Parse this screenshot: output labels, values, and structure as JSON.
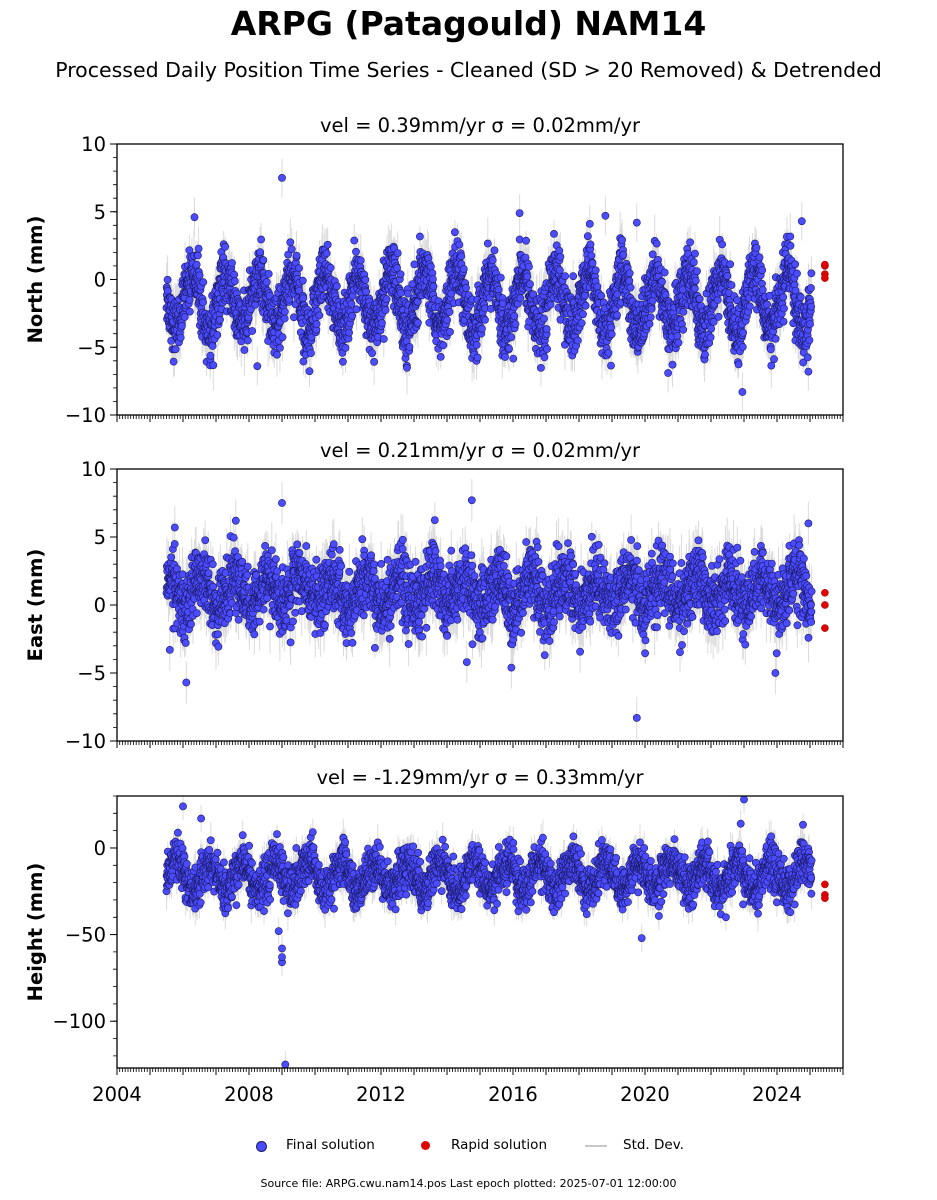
{
  "figure": {
    "title": "ARPG (Patagould) NAM14",
    "subtitle": "Processed Daily Position Time Series - Cleaned (SD > 20 Removed) & Detrended",
    "source_note": "Source file: ARPG.cwu.nam14.pos  Last epoch plotted: 2025-07-01 12:00:00"
  },
  "legend": {
    "final": "Final solution",
    "rapid": "Rapid solution",
    "stddev": "Std. Dev."
  },
  "colors": {
    "final_fill": "#4b4bff",
    "final_edge": "#1a1a66",
    "rapid": "#e00000",
    "stddev": "#bdbdbd"
  },
  "chart_data": [
    {
      "type": "scatter",
      "panel": "north",
      "title": "vel = 0.39mm/yr   σ = 0.02mm/yr",
      "ylabel": "North (mm)",
      "xlim": [
        2004.0,
        2026.0
      ],
      "ylim": [
        -10,
        10
      ],
      "yticks": [
        -10,
        -5,
        0,
        5,
        10
      ],
      "ytick_labels": [
        "−10",
        "−5",
        "0",
        "5",
        "10"
      ],
      "xticks": [
        2004,
        2008,
        2012,
        2016,
        2020,
        2024
      ],
      "xtick_labels": [
        "2004",
        "2008",
        "2012",
        "2016",
        "2020",
        "2024"
      ],
      "model": {
        "start": 2005.5,
        "end": 2025.05,
        "step": 0.0055,
        "offset": -1.6,
        "amp": 2.1,
        "phase": 0.05,
        "noise": 1.1
      },
      "outliers": [
        [
          2009.0,
          7.5
        ],
        [
          2006.35,
          4.6
        ],
        [
          2022.95,
          -8.3
        ],
        [
          2024.95,
          -6.8
        ],
        [
          2016.2,
          4.9
        ],
        [
          2018.8,
          4.7
        ],
        [
          2019.75,
          4.2
        ],
        [
          2024.75,
          4.3
        ],
        [
          2008.25,
          -6.4
        ],
        [
          2020.7,
          -6.9
        ]
      ],
      "rapid": [
        [
          2025.45,
          1.0
        ],
        [
          2025.45,
          0.4
        ],
        [
          2025.45,
          0.1
        ],
        [
          2025.45,
          1.1
        ]
      ]
    },
    {
      "type": "scatter",
      "panel": "east",
      "title": "vel = 0.21mm/yr   σ = 0.02mm/yr",
      "ylabel": "East (mm)",
      "xlim": [
        2004.0,
        2026.0
      ],
      "ylim": [
        -10,
        10
      ],
      "yticks": [
        -10,
        -5,
        0,
        5,
        10
      ],
      "ytick_labels": [
        "−10",
        "−5",
        "0",
        "5",
        "10"
      ],
      "xticks": [
        2004,
        2008,
        2012,
        2016,
        2020,
        2024
      ],
      "xtick_labels": [
        "2004",
        "2008",
        "2012",
        "2016",
        "2020",
        "2024"
      ],
      "model": {
        "start": 2005.5,
        "end": 2025.05,
        "step": 0.0055,
        "offset": 1.0,
        "amp": 1.1,
        "phase": 0.3,
        "noise": 1.2
      },
      "outliers": [
        [
          2009.0,
          7.5
        ],
        [
          2014.75,
          7.7
        ],
        [
          2005.75,
          5.7
        ],
        [
          2007.6,
          6.2
        ],
        [
          2006.1,
          -5.7
        ],
        [
          2019.75,
          -8.3
        ],
        [
          2023.95,
          -5.0
        ],
        [
          2005.6,
          -3.3
        ],
        [
          2024.95,
          6.0
        ],
        [
          2014.6,
          -4.2
        ],
        [
          2015.95,
          -4.6
        ]
      ],
      "rapid": [
        [
          2025.45,
          0.9
        ],
        [
          2025.45,
          0.0
        ],
        [
          2025.45,
          -1.7
        ]
      ]
    },
    {
      "type": "scatter",
      "panel": "height",
      "title": "vel = -1.29mm/yr   σ = 0.33mm/yr",
      "ylabel": "Height (mm)",
      "xlim": [
        2004.0,
        2026.0
      ],
      "ylim": [
        -127,
        30
      ],
      "yticks": [
        -100,
        -50,
        0
      ],
      "ytick_labels": [
        "−100",
        "−50",
        "0"
      ],
      "xticks": [
        2004,
        2008,
        2012,
        2016,
        2020,
        2024
      ],
      "xtick_labels": [
        "2004",
        "2008",
        "2012",
        "2016",
        "2020",
        "2024"
      ],
      "model": {
        "start": 2005.5,
        "end": 2025.05,
        "step": 0.0055,
        "offset": -16.0,
        "amp": 8.0,
        "phase": 0.55,
        "noise": 6.0
      },
      "outliers": [
        [
          2009.1,
          -125.0
        ],
        [
          2009.0,
          -66.0
        ],
        [
          2009.0,
          -63.0
        ],
        [
          2009.0,
          -58.0
        ],
        [
          2008.9,
          -48.0
        ],
        [
          2006.0,
          24.0
        ],
        [
          2006.55,
          17.0
        ],
        [
          2023.0,
          28.0
        ],
        [
          2019.9,
          -52.0
        ],
        [
          2022.45,
          -40.0
        ],
        [
          2022.9,
          14.0
        ]
      ],
      "rapid": [
        [
          2025.45,
          -21.0
        ],
        [
          2025.45,
          -27.0
        ],
        [
          2025.45,
          -29.0
        ]
      ]
    }
  ]
}
